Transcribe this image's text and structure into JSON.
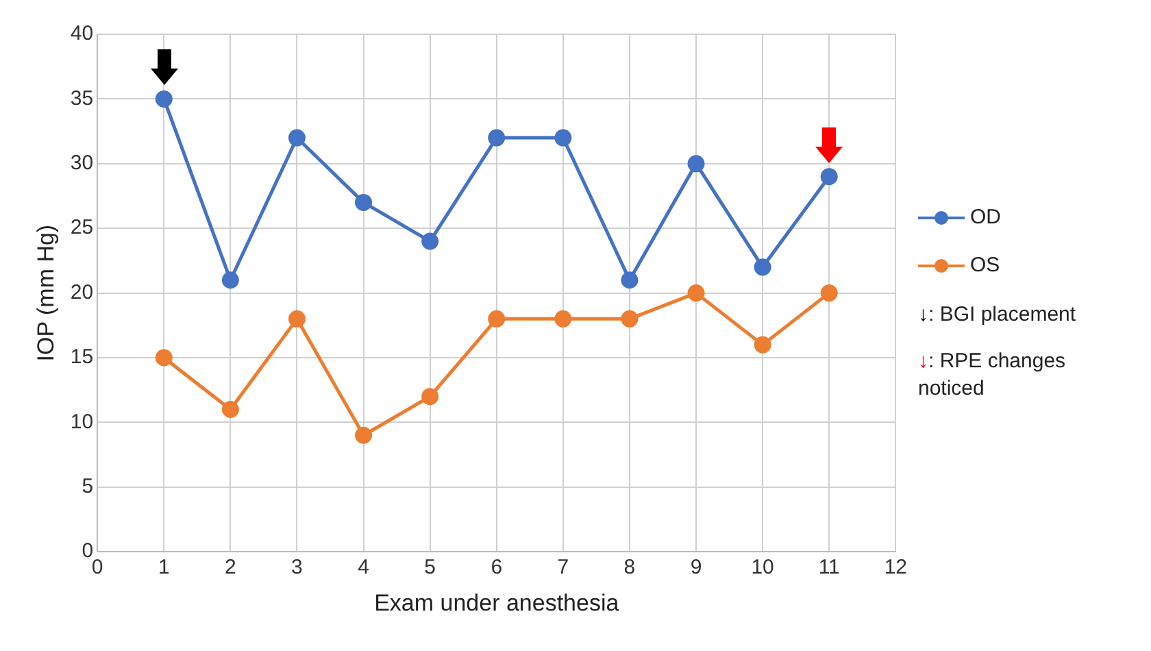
{
  "chart_data": {
    "type": "line",
    "xlabel": "Exam under anesthesia",
    "ylabel": "IOP (mm Hg)",
    "x": [
      1,
      2,
      3,
      4,
      5,
      6,
      7,
      8,
      9,
      10,
      11
    ],
    "series": [
      {
        "name": "OD",
        "color": "#4472c4",
        "values": [
          35,
          21,
          32,
          27,
          24,
          32,
          32,
          21,
          30,
          22,
          29
        ]
      },
      {
        "name": "OS",
        "color": "#ed7d31",
        "values": [
          15,
          11,
          18,
          9,
          12,
          18,
          18,
          18,
          20,
          16,
          20
        ]
      }
    ],
    "xlim": [
      0,
      12
    ],
    "xticks": [
      0,
      1,
      2,
      3,
      4,
      5,
      6,
      7,
      8,
      9,
      10,
      11,
      12
    ],
    "ylim": [
      0,
      40
    ],
    "yticks": [
      0,
      5,
      10,
      15,
      20,
      25,
      30,
      35,
      40
    ],
    "grid": true,
    "legend": "right",
    "marker": "circle",
    "line_style": "solid",
    "annotations": [
      "↓: BGI placement",
      "↓: RPE changes noticed"
    ]
  }
}
